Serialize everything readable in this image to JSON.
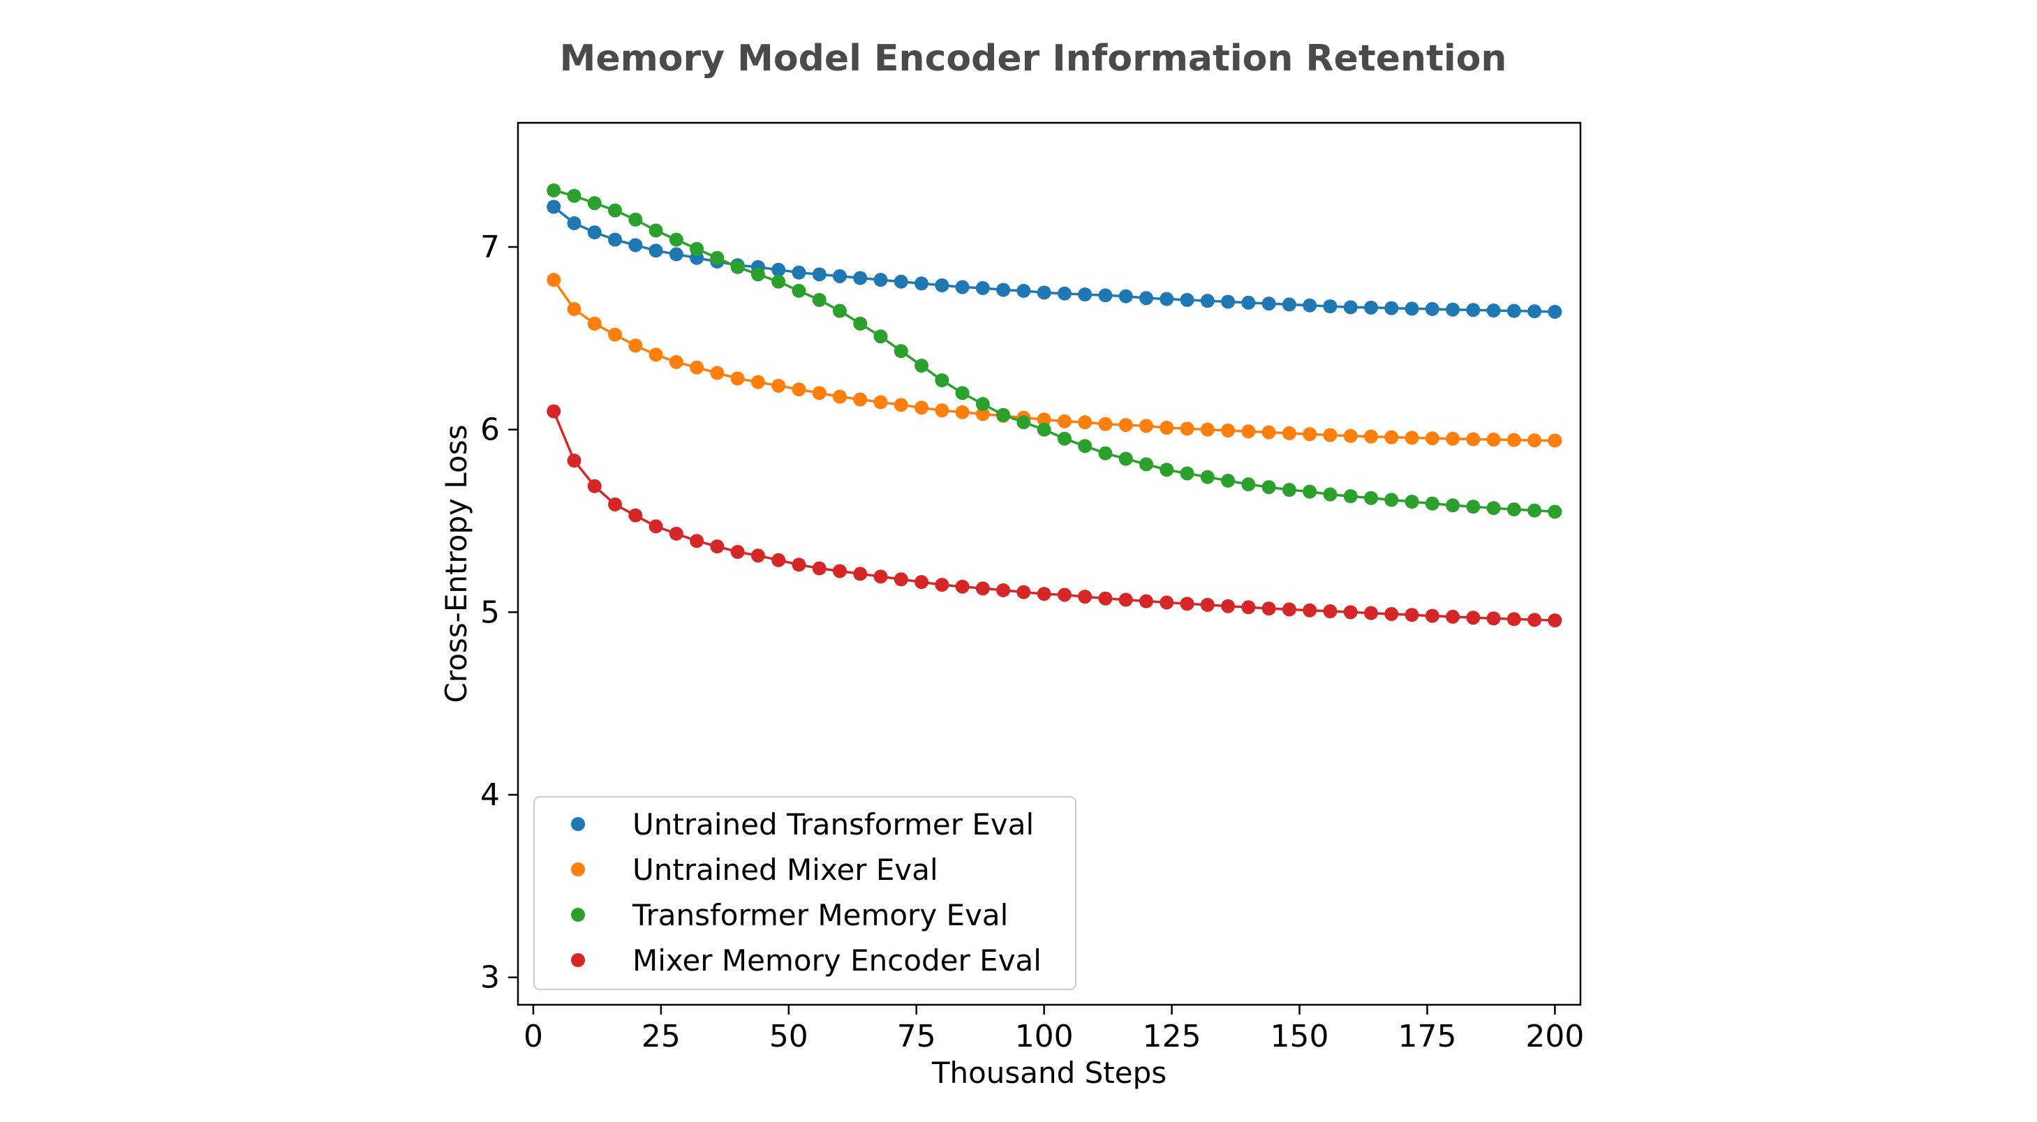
{
  "chart_data": {
    "type": "line",
    "title": "Memory Model Encoder Information Retention",
    "xlabel": "Thousand Steps",
    "ylabel": "Cross-Entropy Loss",
    "xlim": [
      -3,
      205
    ],
    "ylim": [
      2.85,
      7.68
    ],
    "xticks": [
      0,
      25,
      50,
      75,
      100,
      125,
      150,
      175,
      200
    ],
    "yticks": [
      3,
      4,
      5,
      6,
      7
    ],
    "grid": false,
    "legend_position": "lower-left",
    "x": [
      4,
      8,
      12,
      16,
      20,
      24,
      28,
      32,
      36,
      40,
      44,
      48,
      52,
      56,
      60,
      64,
      68,
      72,
      76,
      80,
      84,
      88,
      92,
      96,
      100,
      104,
      108,
      112,
      116,
      120,
      124,
      128,
      132,
      136,
      140,
      144,
      148,
      152,
      156,
      160,
      164,
      168,
      172,
      176,
      180,
      184,
      188,
      192,
      196,
      200
    ],
    "series": [
      {
        "name": "Untrained Transformer Eval",
        "color": "#1f77b4",
        "values": [
          7.22,
          7.13,
          7.08,
          7.04,
          7.01,
          6.98,
          6.96,
          6.94,
          6.92,
          6.9,
          6.89,
          6.875,
          6.86,
          6.85,
          6.84,
          6.83,
          6.82,
          6.81,
          6.8,
          6.79,
          6.78,
          6.775,
          6.765,
          6.76,
          6.75,
          6.745,
          6.74,
          6.735,
          6.73,
          6.72,
          6.715,
          6.71,
          6.705,
          6.7,
          6.695,
          6.69,
          6.685,
          6.68,
          6.675,
          6.67,
          6.668,
          6.665,
          6.662,
          6.66,
          6.657,
          6.655,
          6.652,
          6.65,
          6.648,
          6.645
        ]
      },
      {
        "name": "Untrained Mixer Eval",
        "color": "#ff7f0e",
        "values": [
          6.82,
          6.66,
          6.58,
          6.52,
          6.46,
          6.41,
          6.37,
          6.34,
          6.31,
          6.28,
          6.26,
          6.24,
          6.22,
          6.2,
          6.18,
          6.165,
          6.15,
          6.135,
          6.12,
          6.105,
          6.095,
          6.085,
          6.075,
          6.065,
          6.055,
          6.045,
          6.04,
          6.03,
          6.025,
          6.02,
          6.01,
          6.005,
          6.0,
          5.995,
          5.99,
          5.985,
          5.98,
          5.975,
          5.97,
          5.965,
          5.962,
          5.958,
          5.955,
          5.952,
          5.95,
          5.947,
          5.945,
          5.943,
          5.941,
          5.94
        ]
      },
      {
        "name": "Transformer Memory Eval",
        "color": "#2ca02c",
        "values": [
          7.31,
          7.28,
          7.24,
          7.2,
          7.15,
          7.09,
          7.04,
          6.99,
          6.94,
          6.89,
          6.85,
          6.81,
          6.76,
          6.71,
          6.65,
          6.58,
          6.51,
          6.43,
          6.35,
          6.27,
          6.2,
          6.14,
          6.08,
          6.04,
          6.0,
          5.95,
          5.91,
          5.87,
          5.84,
          5.81,
          5.78,
          5.76,
          5.74,
          5.72,
          5.7,
          5.685,
          5.67,
          5.66,
          5.645,
          5.635,
          5.625,
          5.615,
          5.605,
          5.595,
          5.585,
          5.578,
          5.57,
          5.563,
          5.557,
          5.55
        ]
      },
      {
        "name": "Mixer Memory Encoder Eval",
        "color": "#d62728",
        "values": [
          6.1,
          5.83,
          5.69,
          5.59,
          5.53,
          5.47,
          5.43,
          5.39,
          5.36,
          5.33,
          5.31,
          5.285,
          5.26,
          5.24,
          5.225,
          5.21,
          5.195,
          5.18,
          5.165,
          5.15,
          5.14,
          5.13,
          5.12,
          5.11,
          5.1,
          5.095,
          5.085,
          5.075,
          5.068,
          5.06,
          5.053,
          5.046,
          5.04,
          5.033,
          5.027,
          5.02,
          5.015,
          5.01,
          5.005,
          5.0,
          4.995,
          4.99,
          4.985,
          4.98,
          4.975,
          4.97,
          4.966,
          4.962,
          4.958,
          4.955
        ]
      }
    ]
  }
}
